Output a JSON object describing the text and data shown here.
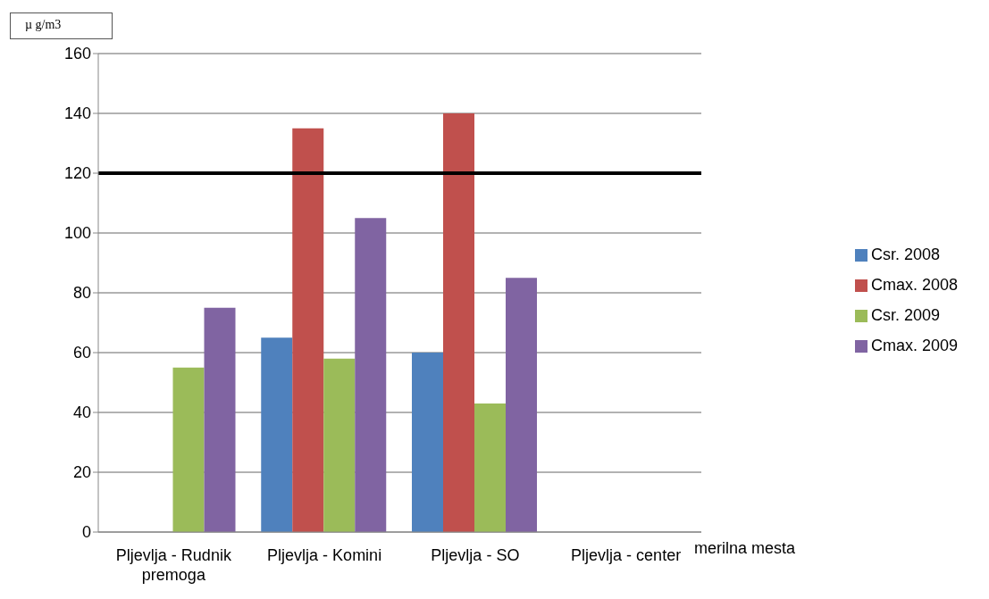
{
  "chart_data": {
    "type": "bar",
    "ylabel": "µ g/m3",
    "xlabel": "merilna mesta",
    "categories": [
      "Pljevlja - Rudnik premoga",
      "Pljevlja - Komini",
      "Pljevlja - SO",
      "Pljevlja - center"
    ],
    "series": [
      {
        "name": "Csr. 2008",
        "color": "#4f81bd",
        "values": [
          null,
          65,
          60,
          null
        ]
      },
      {
        "name": "Cmax. 2008",
        "color": "#c0504d",
        "values": [
          null,
          135,
          140,
          null
        ]
      },
      {
        "name": "Csr. 2009",
        "color": "#9bbb59",
        "values": [
          55,
          58,
          43,
          null
        ]
      },
      {
        "name": "Cmax. 2009",
        "color": "#8064a2",
        "values": [
          75,
          105,
          85,
          null
        ]
      }
    ],
    "ylim": [
      0,
      160
    ],
    "yticks": [
      0,
      20,
      40,
      60,
      80,
      100,
      120,
      140,
      160
    ],
    "grid": "y",
    "legend": "right",
    "ref_lines": [
      {
        "axis": "y",
        "value": 120,
        "color": "#000000"
      }
    ]
  }
}
